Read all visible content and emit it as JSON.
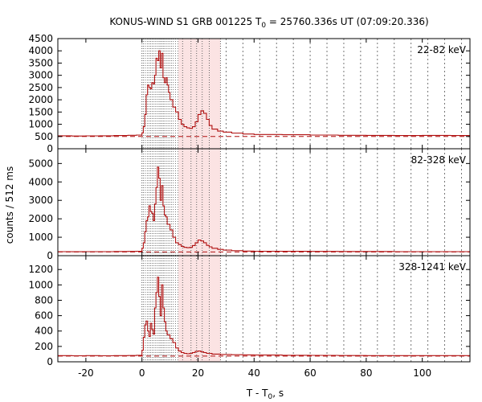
{
  "title": {
    "main": "KONUS-WIND S1 GRB 001225 T",
    "sub": "0",
    "rest": " = 25760.336s UT (07:09:20.336)"
  },
  "ylabel": "counts / 512 ms",
  "xlabel": {
    "main": "T - T",
    "sub": "0",
    "rest": ", s"
  },
  "colors": {
    "series": "#b01010",
    "background_level": "#b01010",
    "shade": "#fbe3e3",
    "grid": "#555555"
  },
  "chart_data": {
    "type": "line",
    "xlim": [
      -30,
      117
    ],
    "xticks": [
      -20,
      0,
      20,
      40,
      60,
      80,
      100
    ],
    "grid_x": [
      30,
      36,
      42,
      48,
      54,
      60,
      66,
      72,
      78,
      84,
      90,
      96,
      102,
      108,
      114
    ],
    "fine_grid_x": [
      0.5,
      1.2,
      1.9,
      2.5,
      3.1,
      3.7,
      4.3,
      4.9,
      5.5,
      6.1,
      6.6,
      7.1,
      7.6,
      8.1,
      8.7,
      9.3,
      9.9,
      10.5,
      11.2,
      12.0,
      12.8
    ],
    "coarse_grid_x": [
      14.5,
      17.5,
      19.5,
      21.5,
      24.0,
      28.0
    ],
    "shaded_x": [
      13.0,
      28.0
    ],
    "panels": [
      {
        "label": "22-82 keV",
        "ylim": [
          0,
          4500
        ],
        "yticks": [
          0,
          500,
          1000,
          1500,
          2000,
          2500,
          3000,
          3500,
          4000,
          4500
        ],
        "background": 500,
        "points": [
          [
            -30,
            530
          ],
          [
            -25,
            520
          ],
          [
            -20,
            525
          ],
          [
            -15,
            530
          ],
          [
            -10,
            540
          ],
          [
            -5,
            550
          ],
          [
            -2,
            560
          ],
          [
            0,
            650
          ],
          [
            0.5,
            900
          ],
          [
            1,
            1400
          ],
          [
            1.5,
            2200
          ],
          [
            2,
            2600
          ],
          [
            2.5,
            2500
          ],
          [
            3,
            2450
          ],
          [
            3.5,
            2700
          ],
          [
            4,
            2650
          ],
          [
            4.5,
            3000
          ],
          [
            5,
            3700
          ],
          [
            5.5,
            3600
          ],
          [
            6,
            4000
          ],
          [
            6.5,
            3300
          ],
          [
            7,
            3900
          ],
          [
            7.5,
            2900
          ],
          [
            8,
            2700
          ],
          [
            8.5,
            2900
          ],
          [
            9,
            2600
          ],
          [
            9.5,
            2300
          ],
          [
            10,
            2000
          ],
          [
            11,
            1700
          ],
          [
            12,
            1500
          ],
          [
            13,
            1200
          ],
          [
            14,
            1000
          ],
          [
            15,
            900
          ],
          [
            16,
            850
          ],
          [
            17,
            830
          ],
          [
            18,
            900
          ],
          [
            19,
            1100
          ],
          [
            20,
            1400
          ],
          [
            21,
            1550
          ],
          [
            22,
            1450
          ],
          [
            23,
            1200
          ],
          [
            24,
            950
          ],
          [
            25,
            800
          ],
          [
            27,
            720
          ],
          [
            29,
            680
          ],
          [
            32,
            640
          ],
          [
            36,
            600
          ],
          [
            40,
            580
          ],
          [
            50,
            570
          ],
          [
            60,
            560
          ],
          [
            70,
            550
          ],
          [
            80,
            545
          ],
          [
            90,
            540
          ],
          [
            100,
            545
          ],
          [
            110,
            540
          ],
          [
            117,
            540
          ]
        ]
      },
      {
        "label": "82-328 keV",
        "ylim": [
          0,
          5800
        ],
        "yticks": [
          0,
          1000,
          2000,
          3000,
          4000,
          5000
        ],
        "background": 200,
        "points": [
          [
            -30,
            220
          ],
          [
            -25,
            215
          ],
          [
            -20,
            220
          ],
          [
            -15,
            220
          ],
          [
            -10,
            225
          ],
          [
            -5,
            230
          ],
          [
            -2,
            240
          ],
          [
            0,
            400
          ],
          [
            0.5,
            700
          ],
          [
            1,
            1300
          ],
          [
            1.5,
            1900
          ],
          [
            2,
            2100
          ],
          [
            2.5,
            2700
          ],
          [
            3,
            2400
          ],
          [
            3.5,
            2300
          ],
          [
            4,
            1900
          ],
          [
            4.5,
            2800
          ],
          [
            5,
            3700
          ],
          [
            5.5,
            4800
          ],
          [
            6,
            4200
          ],
          [
            6.5,
            3000
          ],
          [
            7,
            3800
          ],
          [
            7.5,
            2700
          ],
          [
            8,
            2200
          ],
          [
            8.5,
            2100
          ],
          [
            9,
            1700
          ],
          [
            10,
            1400
          ],
          [
            11,
            1000
          ],
          [
            12,
            700
          ],
          [
            13,
            600
          ],
          [
            14,
            500
          ],
          [
            15,
            450
          ],
          [
            16,
            430
          ],
          [
            17,
            450
          ],
          [
            18,
            550
          ],
          [
            19,
            700
          ],
          [
            20,
            850
          ],
          [
            21,
            800
          ],
          [
            22,
            700
          ],
          [
            23,
            560
          ],
          [
            24,
            480
          ],
          [
            25,
            400
          ],
          [
            27,
            340
          ],
          [
            29,
            300
          ],
          [
            32,
            270
          ],
          [
            36,
            250
          ],
          [
            40,
            240
          ],
          [
            50,
            235
          ],
          [
            60,
            230
          ],
          [
            70,
            225
          ],
          [
            80,
            225
          ],
          [
            90,
            220
          ],
          [
            100,
            220
          ],
          [
            110,
            220
          ],
          [
            117,
            220
          ]
        ]
      },
      {
        "label": "328-1241 keV",
        "ylim": [
          0,
          1380
        ],
        "yticks": [
          0,
          200,
          400,
          600,
          800,
          1000,
          1200
        ],
        "background": 75,
        "points": [
          [
            -30,
            80
          ],
          [
            -25,
            78
          ],
          [
            -20,
            80
          ],
          [
            -15,
            78
          ],
          [
            -10,
            80
          ],
          [
            -5,
            82
          ],
          [
            -2,
            85
          ],
          [
            0,
            150
          ],
          [
            0.5,
            320
          ],
          [
            1,
            480
          ],
          [
            1.5,
            530
          ],
          [
            2,
            400
          ],
          [
            2.5,
            330
          ],
          [
            3,
            500
          ],
          [
            3.5,
            420
          ],
          [
            4,
            360
          ],
          [
            4.5,
            700
          ],
          [
            5,
            900
          ],
          [
            5.5,
            1100
          ],
          [
            6,
            850
          ],
          [
            6.5,
            600
          ],
          [
            7,
            1000
          ],
          [
            7.5,
            700
          ],
          [
            8,
            520
          ],
          [
            8.5,
            400
          ],
          [
            9,
            350
          ],
          [
            10,
            300
          ],
          [
            11,
            250
          ],
          [
            12,
            180
          ],
          [
            13,
            140
          ],
          [
            14,
            120
          ],
          [
            15,
            110
          ],
          [
            16,
            105
          ],
          [
            17,
            110
          ],
          [
            18,
            120
          ],
          [
            19,
            135
          ],
          [
            20,
            140
          ],
          [
            21,
            130
          ],
          [
            22,
            120
          ],
          [
            23,
            110
          ],
          [
            25,
            100
          ],
          [
            28,
            95
          ],
          [
            32,
            92
          ],
          [
            36,
            90
          ],
          [
            40,
            88
          ],
          [
            50,
            85
          ],
          [
            60,
            84
          ],
          [
            70,
            82
          ],
          [
            80,
            80
          ],
          [
            90,
            80
          ],
          [
            100,
            80
          ],
          [
            110,
            80
          ],
          [
            117,
            80
          ]
        ]
      }
    ]
  }
}
